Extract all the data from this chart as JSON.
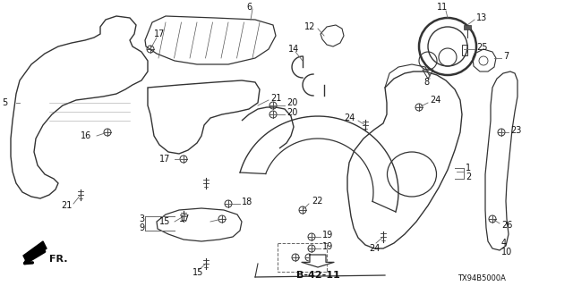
{
  "bg_color": "#ffffff",
  "diagram_code": "B-42-11",
  "part_number": "TX94B5000A",
  "direction_label": "FR.",
  "fig_width": 6.4,
  "fig_height": 3.2,
  "dpi": 100,
  "line_color": "#333333",
  "text_color": "#111111"
}
